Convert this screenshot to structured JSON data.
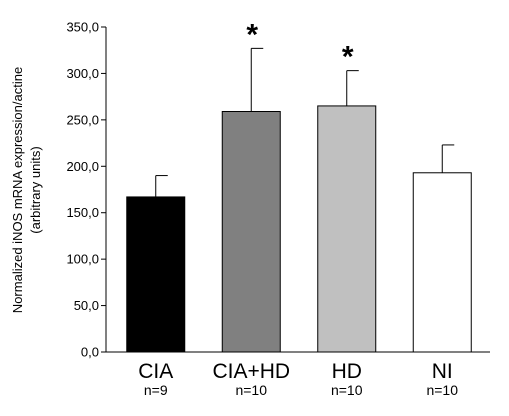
{
  "chart_data": {
    "type": "bar",
    "title": "",
    "ylabel_line1": "Normalized iNOS mRNA expression/actine",
    "ylabel_line2": "(arbitrary units)",
    "xlabel": "",
    "ylim": [
      0,
      350
    ],
    "yticks": [
      0,
      50,
      100,
      150,
      200,
      250,
      300,
      350
    ],
    "ytick_labels": [
      "0,0",
      "50,0",
      "100,0",
      "150,0",
      "200,0",
      "250,0",
      "300,0",
      "350,0"
    ],
    "grid": false,
    "legend": "none",
    "categories": [
      "CIA",
      "CIA+HD",
      "HD",
      "NI"
    ],
    "n_labels": [
      "n=9",
      "n=10",
      "n=10",
      "n=10"
    ],
    "values": [
      167,
      259,
      265,
      193
    ],
    "errors": [
      23,
      68,
      38,
      30
    ],
    "significance": [
      "",
      "*",
      "*",
      ""
    ],
    "colors": [
      "#000000",
      "#808080",
      "#c0c0c0",
      "#ffffff"
    ],
    "edge_color": "#000000"
  }
}
